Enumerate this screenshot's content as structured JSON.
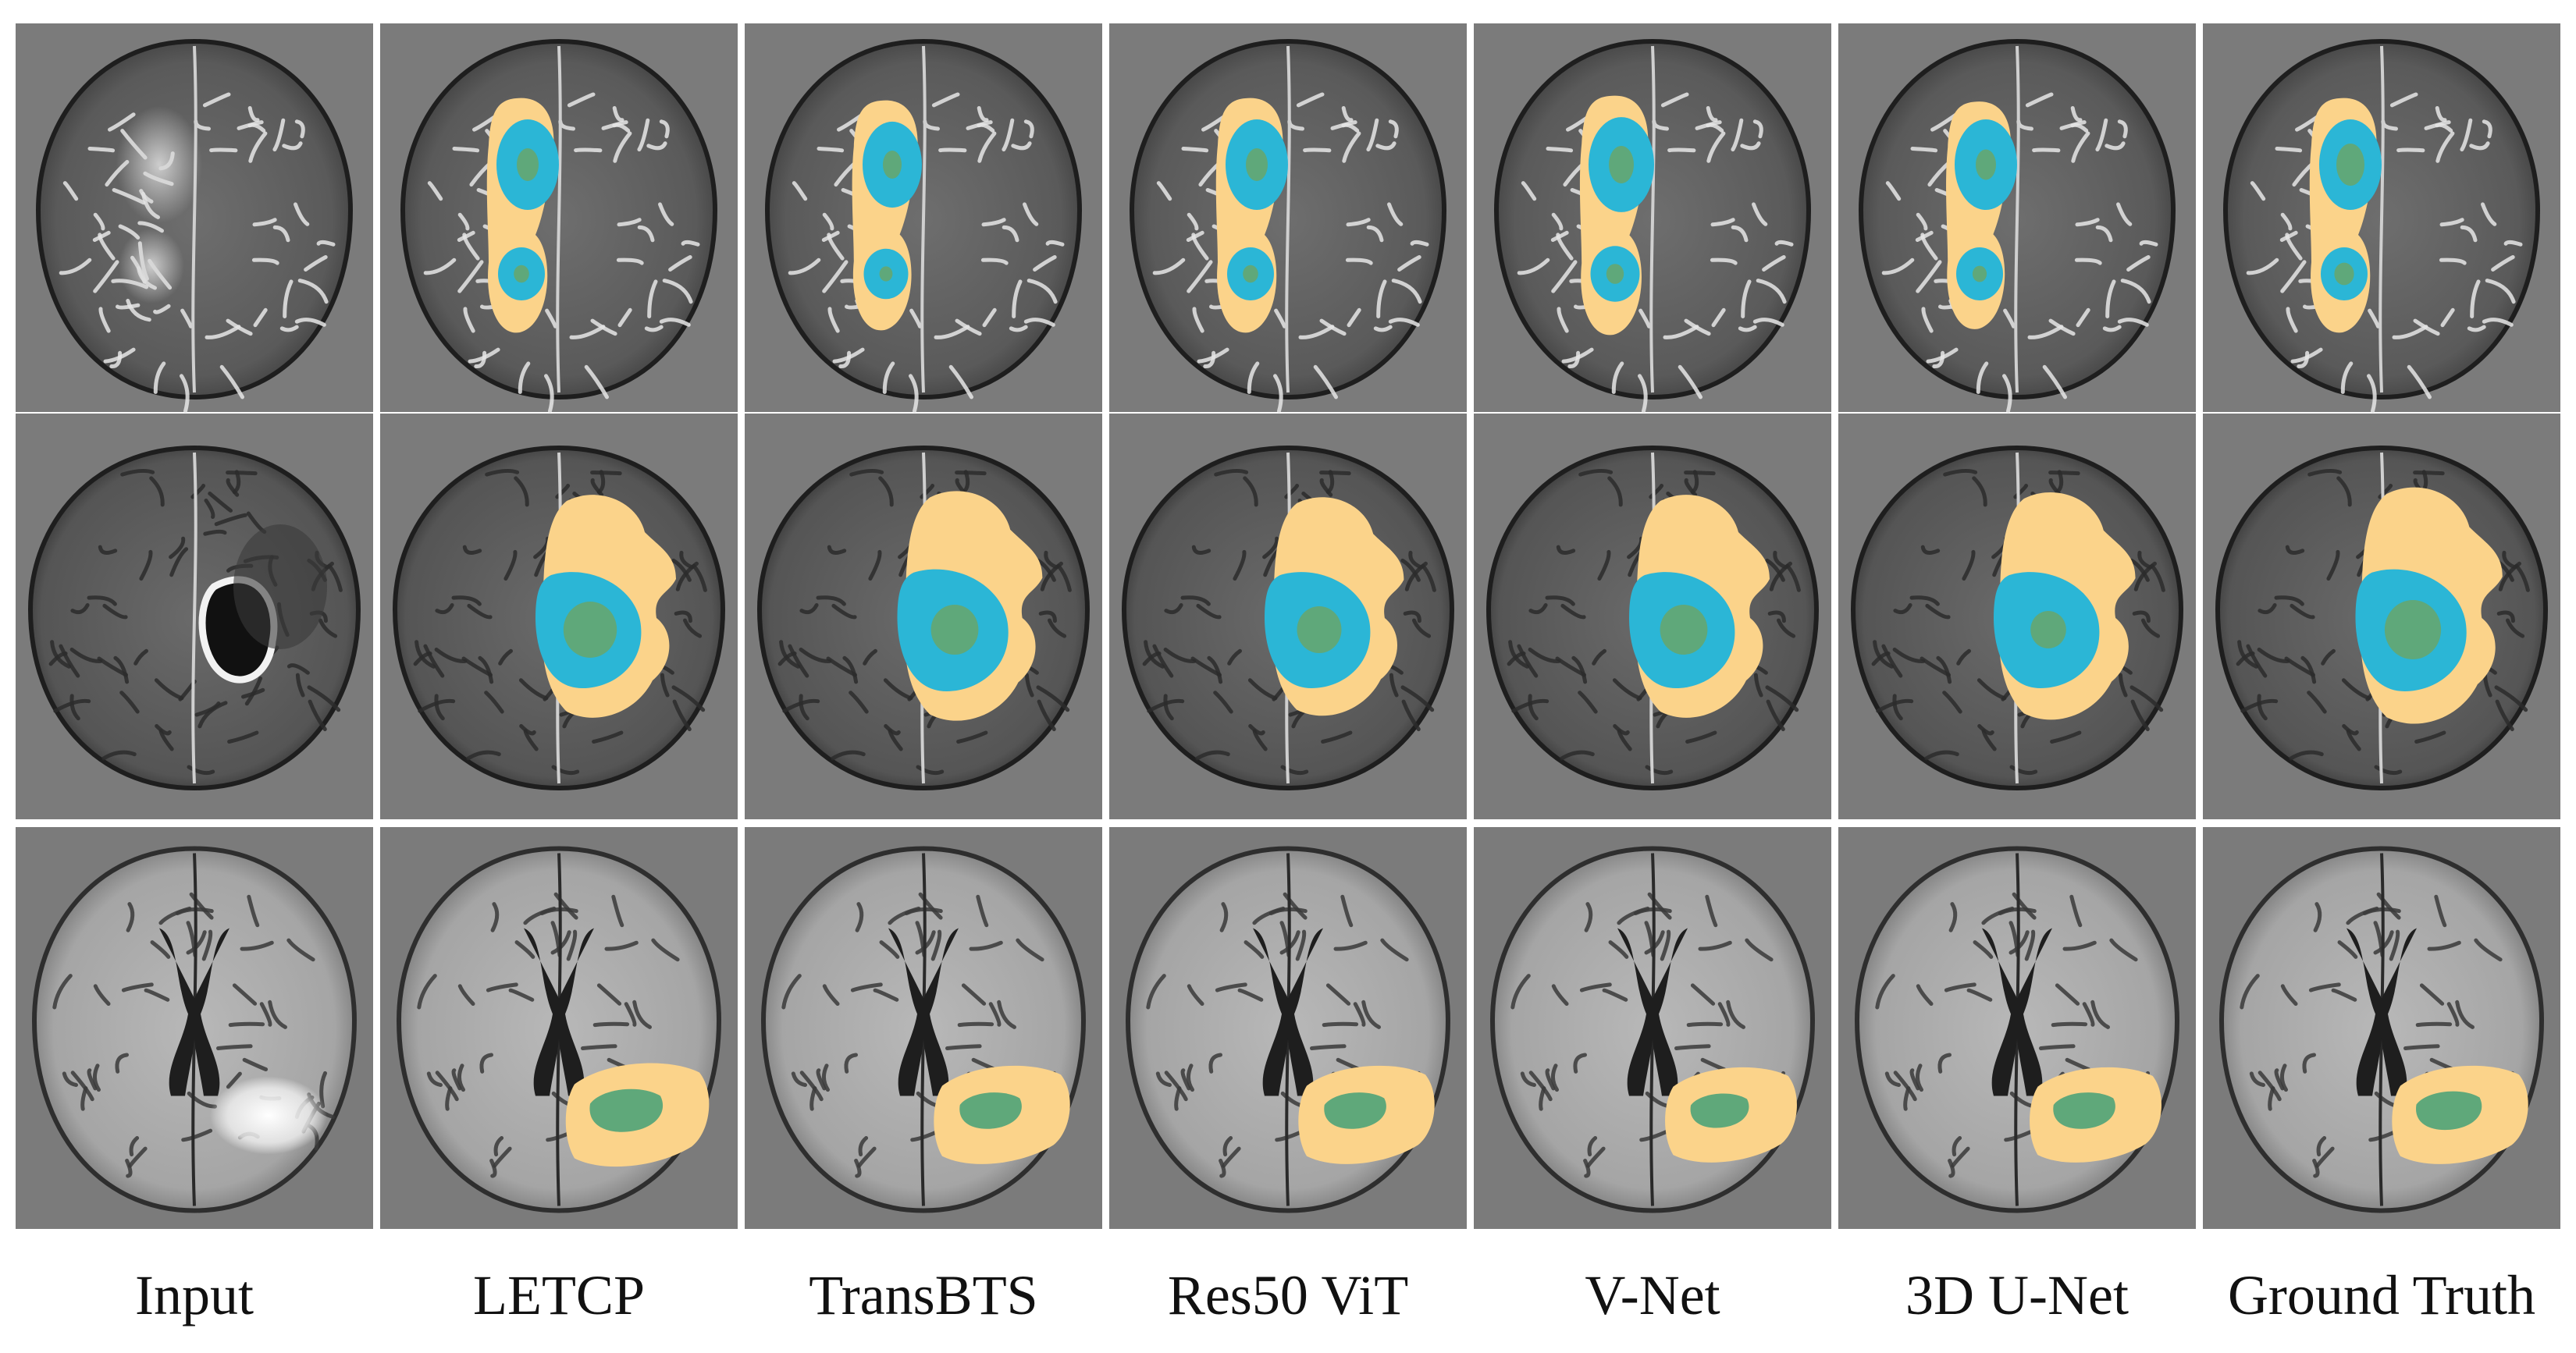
{
  "columns": [
    "Input",
    "LETCP",
    "TransBTS",
    "Res50 ViT",
    "V-Net",
    "3D U-Net",
    "Ground Truth"
  ],
  "rows": [
    {
      "modality_style": "t2",
      "segmentations": {
        "Input": {
          "show": false
        },
        "LETCP": {
          "edema_scale": 1.0,
          "core_scale": 1.0,
          "enh_scale": 0.7
        },
        "TransBTS": {
          "edema_scale": 0.98,
          "core_scale": 0.95,
          "enh_scale": 0.6
        },
        "Res50 ViT": {
          "edema_scale": 1.0,
          "core_scale": 1.0,
          "enh_scale": 0.7
        },
        "V-Net": {
          "edema_scale": 1.02,
          "core_scale": 1.05,
          "enh_scale": 0.8
        },
        "3D U-Net": {
          "edema_scale": 0.97,
          "core_scale": 1.0,
          "enh_scale": 0.65
        },
        "Ground Truth": {
          "edema_scale": 1.0,
          "core_scale": 1.0,
          "enh_scale": 0.9
        }
      }
    },
    {
      "modality_style": "t1ce",
      "segmentations": {
        "Input": {
          "show": false
        },
        "LETCP": {
          "edema_scale": 1.0,
          "core_scale": 1.0,
          "enh_scale": 0.9
        },
        "TransBTS": {
          "edema_scale": 1.03,
          "core_scale": 1.05,
          "enh_scale": 0.8
        },
        "Res50 ViT": {
          "edema_scale": 0.98,
          "core_scale": 1.0,
          "enh_scale": 0.75
        },
        "V-Net": {
          "edema_scale": 1.0,
          "core_scale": 1.0,
          "enh_scale": 0.8
        },
        "3D U-Net": {
          "edema_scale": 1.02,
          "core_scale": 1.0,
          "enh_scale": 0.6
        },
        "Ground Truth": {
          "edema_scale": 1.06,
          "core_scale": 1.05,
          "enh_scale": 0.95
        }
      }
    },
    {
      "modality_style": "flair",
      "segmentations": {
        "Input": {
          "show": false
        },
        "LETCP": {
          "edema_scale": 1.0,
          "core_scale": 0.0,
          "enh_scale": 1.0
        },
        "TransBTS": {
          "edema_scale": 0.95,
          "core_scale": 0.0,
          "enh_scale": 0.85
        },
        "Res50 ViT": {
          "edema_scale": 0.95,
          "core_scale": 0.0,
          "enh_scale": 0.85
        },
        "V-Net": {
          "edema_scale": 0.92,
          "core_scale": 0.0,
          "enh_scale": 0.8
        },
        "3D U-Net": {
          "edema_scale": 0.92,
          "core_scale": 0.0,
          "enh_scale": 0.85
        },
        "Ground Truth": {
          "edema_scale": 0.95,
          "core_scale": 0.0,
          "enh_scale": 0.9
        }
      }
    }
  ],
  "colors": {
    "background_gray": "#7b7b7b",
    "edema": "#fbd38a",
    "tumor_core": "#2bb6d6",
    "enhancing": "#5fa87a",
    "brain_light": "#b9b9b9",
    "brain_dark": "#4a4a4a"
  }
}
